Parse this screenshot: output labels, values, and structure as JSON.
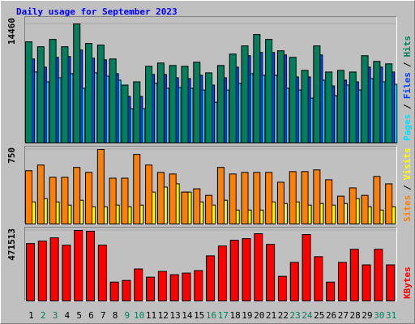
{
  "chart_data": [
    {
      "type": "bar",
      "title": "Daily usage for September 2023",
      "ylim": [
        0,
        14460
      ],
      "yticks": [
        14460
      ],
      "legend_separator": "/",
      "series": [
        {
          "name": "Pages",
          "color": "#00e0ff",
          "values": [
            8616,
            7428,
            7923,
            8418,
            6636,
            8517,
            8121,
            7626,
            4160,
            4160,
            7230,
            6636,
            6735,
            6636,
            6438,
            4952,
            6438,
            7230,
            8418,
            8220,
            8220,
            6636,
            6438,
            5447,
            7626,
            5744,
            7032,
            6438,
            7824,
            7428,
            7131
          ]
        },
        {
          "name": "Files",
          "color": "#0040ff",
          "values": [
            10201,
            9211,
            10399,
            10498,
            11291,
            10300,
            10102,
            8418,
            5645,
            5645,
            8319,
            8319,
            7923,
            7824,
            8220,
            7032,
            7923,
            9211,
            10597,
            10993,
            10993,
            10696,
            8022,
            8022,
            10696,
            6933,
            7626,
            7428,
            9211,
            9211,
            8616
          ]
        },
        {
          "name": "Hits",
          "color": "#00805c",
          "values": [
            12281,
            11687,
            12578,
            11687,
            14460,
            12083,
            11885,
            10201,
            7032,
            7428,
            9310,
            9706,
            9409,
            9310,
            9805,
            8517,
            9409,
            10795,
            11786,
            13172,
            12578,
            11192,
            10399,
            8815,
            11786,
            8616,
            8815,
            8616,
            10597,
            9904,
            9607
          ]
        }
      ]
    },
    {
      "type": "bar",
      "ylim": [
        0,
        750
      ],
      "yticks": [
        750
      ],
      "legend_separator": "/",
      "series": [
        {
          "name": "Sites",
          "color": "#ff8000",
          "values": [
            536,
            593,
            470,
            470,
            569,
            519,
            750,
            461,
            461,
            700,
            593,
            519,
            503,
            321,
            354,
            288,
            569,
            503,
            519,
            519,
            519,
            420,
            527,
            527,
            544,
            445,
            280,
            363,
            288,
            478,
            404
          ]
        },
        {
          "name": "Visits",
          "color": "#ffff00",
          "values": [
            222,
            255,
            222,
            190,
            239,
            173,
            173,
            190,
            173,
            190,
            321,
            371,
            404,
            321,
            222,
            190,
            239,
            140,
            140,
            140,
            222,
            206,
            222,
            190,
            206,
            190,
            206,
            255,
            173,
            140,
            173
          ]
        }
      ]
    },
    {
      "type": "bar",
      "ylim": [
        0,
        471513
      ],
      "yticks": [
        471513
      ],
      "categories": [
        "1",
        "2",
        "3",
        "4",
        "5",
        "6",
        "7",
        "8",
        "9",
        "10",
        "11",
        "12",
        "13",
        "14",
        "15",
        "16",
        "17",
        "18",
        "19",
        "20",
        "21",
        "22",
        "23",
        "24",
        "25",
        "26",
        "27",
        "28",
        "29",
        "30",
        "31"
      ],
      "category_colors": [
        "#000000",
        "#00805c",
        "#00805c",
        "#000000",
        "#000000",
        "#000000",
        "#000000",
        "#000000",
        "#00805c",
        "#00805c",
        "#000000",
        "#000000",
        "#000000",
        "#000000",
        "#000000",
        "#00805c",
        "#00805c",
        "#000000",
        "#000000",
        "#000000",
        "#000000",
        "#000000",
        "#00805c",
        "#00805c",
        "#000000",
        "#000000",
        "#000000",
        "#000000",
        "#000000",
        "#00805c",
        "#00805c"
      ],
      "series": [
        {
          "name": "KBytes",
          "color": "#ff0000",
          "values": [
            383810,
            400259,
            422191,
            372844,
            471513,
            466055,
            372844,
            126109,
            137075,
            213837,
            159007,
            197388,
            175456,
            186422,
            202871,
            301565,
            367361,
            405742,
            416708,
            449606,
            378327,
            164490,
            257701,
            444123,
            296082,
            126109,
            257701,
            345429,
            241252,
            345429,
            241252
          ]
        }
      ]
    }
  ]
}
